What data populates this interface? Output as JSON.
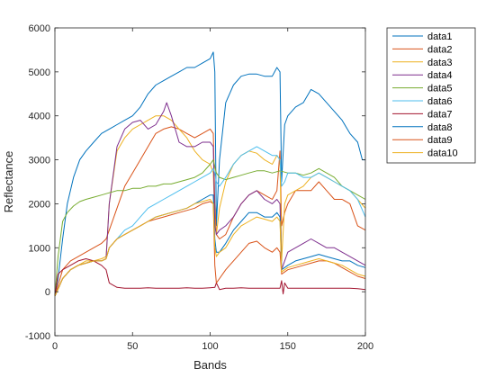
{
  "chart_data": {
    "type": "line",
    "xlabel": "Bands",
    "ylabel": "Reflectance",
    "xlim": [
      0,
      200
    ],
    "ylim": [
      -1000,
      6000
    ],
    "x_ticks": [
      0,
      50,
      100,
      150,
      200
    ],
    "y_ticks": [
      -1000,
      0,
      1000,
      2000,
      3000,
      4000,
      5000,
      6000
    ],
    "grid": false,
    "legend_position": "outside-top-right",
    "series": [
      {
        "name": "data1",
        "color": "#0072BD",
        "x": [
          0,
          2,
          5,
          8,
          12,
          16,
          20,
          25,
          30,
          35,
          40,
          45,
          50,
          55,
          60,
          65,
          70,
          75,
          80,
          85,
          90,
          95,
          100,
          102,
          103,
          104,
          106,
          110,
          115,
          120,
          125,
          130,
          135,
          140,
          143,
          145,
          146,
          148,
          150,
          155,
          160,
          165,
          170,
          175,
          180,
          185,
          190,
          195,
          198,
          200
        ],
        "y": [
          -100,
          300,
          1200,
          2000,
          2600,
          3000,
          3200,
          3400,
          3600,
          3700,
          3800,
          3900,
          4000,
          4200,
          4500,
          4700,
          4800,
          4900,
          5000,
          5100,
          5100,
          5200,
          5300,
          5450,
          5000,
          1500,
          3000,
          4300,
          4700,
          4900,
          4950,
          4950,
          4900,
          4900,
          5100,
          5000,
          2500,
          3800,
          4000,
          4200,
          4300,
          4600,
          4500,
          4300,
          4100,
          3900,
          3600,
          3400,
          3000,
          3000
        ]
      },
      {
        "name": "data2",
        "color": "#D95319",
        "x": [
          0,
          5,
          10,
          15,
          20,
          25,
          30,
          33,
          35,
          40,
          45,
          50,
          55,
          60,
          65,
          70,
          75,
          80,
          85,
          90,
          95,
          100,
          102,
          103,
          104,
          106,
          110,
          115,
          120,
          125,
          130,
          135,
          140,
          143,
          145,
          146,
          148,
          150,
          155,
          160,
          165,
          170,
          175,
          180,
          185,
          190,
          195,
          200
        ],
        "y": [
          -100,
          500,
          700,
          800,
          900,
          1000,
          1100,
          1200,
          1400,
          1900,
          2400,
          2700,
          3000,
          3300,
          3600,
          3700,
          3750,
          3700,
          3600,
          3500,
          3600,
          3700,
          3600,
          2000,
          1300,
          1200,
          1300,
          1700,
          2000,
          2200,
          2300,
          2200,
          2100,
          2300,
          3200,
          1500,
          1800,
          2000,
          2300,
          2300,
          2300,
          2500,
          2300,
          2100,
          2100,
          2000,
          1500,
          1400
        ]
      },
      {
        "name": "data3",
        "color": "#EDB120",
        "x": [
          0,
          5,
          10,
          15,
          20,
          25,
          30,
          33,
          35,
          40,
          45,
          50,
          55,
          60,
          65,
          70,
          75,
          80,
          85,
          90,
          95,
          100,
          102,
          103,
          104,
          106,
          110,
          115,
          120,
          125,
          130,
          135,
          140,
          143,
          145,
          146,
          148,
          150,
          155,
          160,
          165,
          170,
          175,
          180,
          185,
          190,
          195,
          200
        ],
        "y": [
          -100,
          300,
          500,
          600,
          700,
          700,
          750,
          800,
          2000,
          3200,
          3500,
          3700,
          3800,
          3900,
          4000,
          4000,
          3900,
          3700,
          3500,
          3200,
          3000,
          2900,
          2700,
          1600,
          1300,
          1900,
          2500,
          2900,
          3100,
          3200,
          3150,
          3000,
          2900,
          3100,
          3000,
          700,
          2000,
          2200,
          2300,
          2400,
          2600,
          2700,
          2600,
          2500,
          2400,
          2300,
          2100,
          1900
        ]
      },
      {
        "name": "data4",
        "color": "#7E2F8E",
        "x": [
          0,
          5,
          10,
          15,
          20,
          25,
          30,
          33,
          35,
          40,
          45,
          50,
          55,
          60,
          65,
          70,
          72,
          75,
          80,
          85,
          90,
          95,
          100,
          102,
          103,
          104,
          106,
          110,
          115,
          120,
          125,
          130,
          135,
          140,
          143,
          145,
          146,
          148,
          150,
          155,
          160,
          165,
          170,
          175,
          180,
          185,
          190,
          195,
          200
        ],
        "y": [
          -100,
          300,
          500,
          600,
          650,
          700,
          700,
          750,
          2000,
          3300,
          3700,
          3850,
          3900,
          3700,
          3800,
          4100,
          4300,
          4000,
          3400,
          3300,
          3300,
          3400,
          3400,
          3300,
          1500,
          1300,
          1400,
          1500,
          1700,
          2000,
          2200,
          2300,
          2100,
          2000,
          2100,
          2000,
          500,
          700,
          900,
          1000,
          1100,
          1200,
          1100,
          1000,
          1000,
          900,
          800,
          700,
          600
        ]
      },
      {
        "name": "data5",
        "color": "#77AC30",
        "x": [
          0,
          2,
          5,
          8,
          12,
          16,
          20,
          25,
          30,
          35,
          40,
          45,
          50,
          55,
          60,
          65,
          70,
          75,
          80,
          85,
          90,
          95,
          100,
          102,
          104,
          106,
          110,
          115,
          120,
          125,
          130,
          135,
          140,
          145,
          150,
          155,
          160,
          165,
          170,
          175,
          180,
          185,
          190,
          195,
          200
        ],
        "y": [
          -100,
          800,
          1600,
          1800,
          1950,
          2050,
          2100,
          2150,
          2200,
          2250,
          2300,
          2300,
          2350,
          2350,
          2400,
          2400,
          2450,
          2450,
          2500,
          2550,
          2600,
          2700,
          2900,
          3000,
          2700,
          2600,
          2550,
          2600,
          2650,
          2700,
          2750,
          2750,
          2700,
          2750,
          2700,
          2700,
          2650,
          2700,
          2800,
          2700,
          2600,
          2400,
          2300,
          2200,
          2100
        ]
      },
      {
        "name": "data6",
        "color": "#4DBEEE",
        "x": [
          0,
          5,
          10,
          15,
          20,
          25,
          30,
          33,
          35,
          40,
          45,
          50,
          55,
          60,
          65,
          70,
          75,
          80,
          85,
          90,
          95,
          100,
          102,
          103,
          104,
          106,
          110,
          115,
          120,
          125,
          130,
          135,
          140,
          143,
          145,
          146,
          148,
          150,
          155,
          160,
          165,
          170,
          175,
          180,
          185,
          190,
          195,
          200
        ],
        "y": [
          -100,
          300,
          500,
          600,
          650,
          700,
          700,
          750,
          1000,
          1200,
          1400,
          1500,
          1700,
          1900,
          2000,
          2100,
          2200,
          2300,
          2400,
          2500,
          2600,
          2700,
          2800,
          2700,
          2500,
          2400,
          2600,
          2900,
          3100,
          3200,
          3300,
          3200,
          3100,
          3100,
          3000,
          2400,
          2500,
          2700,
          2700,
          2600,
          2600,
          2700,
          2600,
          2500,
          2400,
          2300,
          2100,
          1700
        ]
      },
      {
        "name": "data7",
        "color": "#A2142F",
        "x": [
          0,
          2,
          5,
          10,
          15,
          20,
          25,
          30,
          33,
          35,
          40,
          45,
          50,
          55,
          60,
          65,
          70,
          75,
          80,
          85,
          90,
          95,
          100,
          103,
          104,
          106,
          110,
          115,
          120,
          125,
          130,
          135,
          140,
          145,
          146,
          147,
          148,
          150,
          155,
          160,
          165,
          170,
          175,
          180,
          185,
          190,
          195,
          200
        ],
        "y": [
          -100,
          400,
          500,
          600,
          700,
          750,
          700,
          600,
          500,
          200,
          100,
          80,
          80,
          80,
          90,
          80,
          80,
          80,
          80,
          90,
          80,
          80,
          90,
          100,
          200,
          50,
          80,
          80,
          90,
          80,
          80,
          80,
          80,
          80,
          250,
          -50,
          200,
          80,
          80,
          80,
          80,
          80,
          80,
          80,
          80,
          80,
          70,
          50
        ]
      },
      {
        "name": "data8",
        "color": "#0072BD",
        "x": [
          0,
          5,
          10,
          15,
          20,
          25,
          30,
          33,
          35,
          40,
          45,
          50,
          55,
          60,
          65,
          70,
          75,
          80,
          85,
          90,
          95,
          100,
          102,
          103,
          104,
          106,
          110,
          115,
          120,
          125,
          130,
          135,
          140,
          143,
          145,
          146,
          148,
          150,
          155,
          160,
          165,
          170,
          175,
          180,
          185,
          190,
          195,
          200
        ],
        "y": [
          -100,
          300,
          500,
          600,
          650,
          700,
          700,
          750,
          1000,
          1200,
          1300,
          1400,
          1500,
          1600,
          1700,
          1750,
          1800,
          1850,
          1900,
          2000,
          2100,
          2200,
          2200,
          1200,
          900,
          900,
          1100,
          1400,
          1600,
          1800,
          1800,
          1700,
          1700,
          1800,
          1700,
          500,
          550,
          600,
          700,
          750,
          800,
          850,
          800,
          750,
          700,
          700,
          600,
          550
        ]
      },
      {
        "name": "data9",
        "color": "#D95319",
        "x": [
          0,
          5,
          10,
          15,
          20,
          25,
          30,
          33,
          35,
          40,
          45,
          50,
          55,
          60,
          65,
          70,
          75,
          80,
          85,
          90,
          95,
          100,
          102,
          103,
          104,
          106,
          110,
          115,
          120,
          125,
          130,
          135,
          140,
          143,
          145,
          146,
          148,
          150,
          155,
          160,
          165,
          170,
          175,
          180,
          185,
          190,
          195,
          200
        ],
        "y": [
          -100,
          300,
          500,
          600,
          650,
          700,
          700,
          750,
          1000,
          1200,
          1300,
          1400,
          1500,
          1600,
          1650,
          1700,
          1750,
          1800,
          1850,
          1900,
          2000,
          2050,
          2000,
          600,
          200,
          300,
          500,
          700,
          900,
          1100,
          1150,
          1000,
          900,
          1000,
          900,
          400,
          450,
          500,
          550,
          600,
          650,
          700,
          700,
          650,
          550,
          450,
          350,
          300
        ]
      },
      {
        "name": "data10",
        "color": "#EDB120",
        "x": [
          0,
          5,
          10,
          15,
          20,
          25,
          30,
          33,
          35,
          40,
          45,
          50,
          55,
          60,
          65,
          70,
          75,
          80,
          85,
          90,
          95,
          100,
          102,
          103,
          104,
          106,
          110,
          115,
          120,
          125,
          130,
          135,
          140,
          143,
          145,
          146,
          148,
          150,
          155,
          160,
          165,
          170,
          175,
          180,
          185,
          190,
          195,
          200
        ],
        "y": [
          -100,
          300,
          500,
          600,
          650,
          700,
          700,
          750,
          1000,
          1200,
          1300,
          1400,
          1500,
          1600,
          1700,
          1750,
          1800,
          1850,
          1900,
          2000,
          2050,
          2100,
          2000,
          1000,
          800,
          900,
          1000,
          1300,
          1500,
          1600,
          1700,
          1650,
          1600,
          1700,
          1600,
          450,
          500,
          550,
          600,
          650,
          700,
          750,
          700,
          650,
          600,
          500,
          400,
          350
        ]
      }
    ]
  }
}
